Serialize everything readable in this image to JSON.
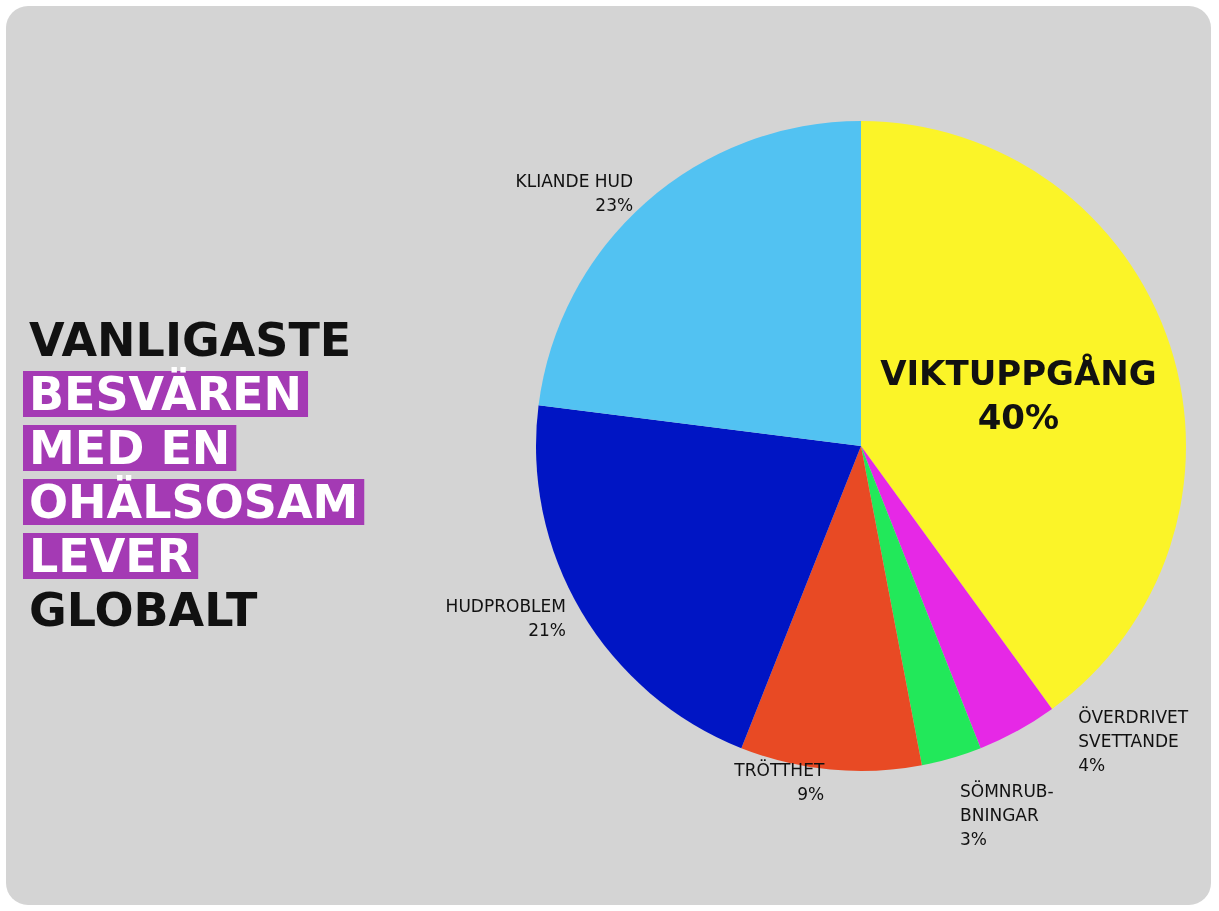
{
  "chart_data": {
    "type": "pie",
    "title": "VANLIGASTE\nBESVÄREN\nMED EN\nOHÄLSOSAM\nLEVER\nGLOBALT",
    "categories": [
      "VIKTUPPGÅNG",
      "ÖVERDRIVET\nSVETTANDE",
      "SÖMNRUB-\nBNINGAR",
      "TRÖTTHET",
      "HUDPROBLEM",
      "KLIANDE HUD"
    ],
    "values": [
      40,
      4,
      3,
      9,
      21,
      23
    ],
    "colors": [
      "#fbf428",
      "#e628e6",
      "#22e85a",
      "#e84a24",
      "#0015c4",
      "#52c2f2"
    ],
    "value_labels": [
      "40%",
      "4%",
      "3%",
      "9%",
      "21%",
      "23%"
    ],
    "legend": false
  }
}
